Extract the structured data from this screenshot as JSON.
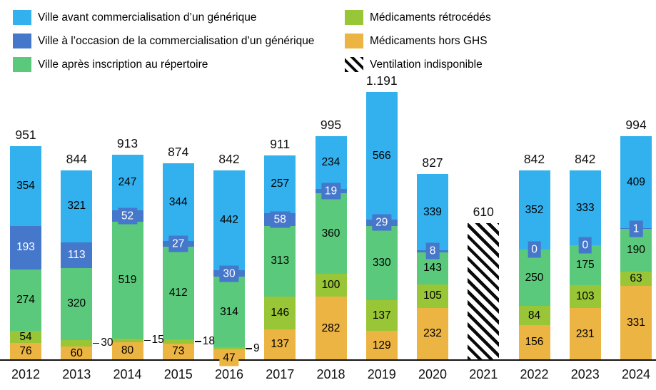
{
  "colors": {
    "ville_avant": "#33B1EE",
    "ville_occasion": "#4577CB",
    "ville_apres": "#5BC97B",
    "retrocedes": "#99C636",
    "hors_ghs": "#ECB442",
    "hatch_stroke": "#0a0a0a",
    "text": "#000000"
  },
  "legend": {
    "columns": [
      {
        "items": [
          {
            "label": "Ville avant commercialisation d’un générique",
            "swatch": "#33B1EE",
            "type": "solid"
          },
          {
            "label": "Ville à l’occasion de la commercialisation d’un générique",
            "swatch": "#4577CB",
            "type": "solid"
          },
          {
            "label": "Ville après inscription au répertoire",
            "swatch": "#5BC97B",
            "type": "solid"
          }
        ]
      },
      {
        "items": [
          {
            "label": "Médicaments rétrocédés",
            "swatch": "#99C636",
            "type": "solid"
          },
          {
            "label": "Médicaments hors GHS",
            "swatch": "#ECB442",
            "type": "solid"
          },
          {
            "label": "Ventilation indisponible",
            "swatch": "#0a0a0a",
            "type": "hatch"
          }
        ]
      }
    ]
  },
  "chart_data": {
    "type": "bar",
    "stacked": true,
    "grid": false,
    "legend_position": "top",
    "ylim": [
      0,
      1250
    ],
    "categories": [
      "2012",
      "2013",
      "2014",
      "2015",
      "2016",
      "2017",
      "2018",
      "2019",
      "2020",
      "2021",
      "2022",
      "2023",
      "2024"
    ],
    "series": [
      {
        "name": "Médicaments hors GHS",
        "color": "#ECB442",
        "label_color": "#000000",
        "values": [
          76,
          60,
          80,
          73,
          47,
          137,
          282,
          129,
          232,
          null,
          156,
          231,
          331
        ]
      },
      {
        "name": "Médicaments rétrocédés",
        "color": "#99C636",
        "label_color": "#000000",
        "values": [
          54,
          30,
          15,
          18,
          9,
          146,
          100,
          137,
          105,
          null,
          84,
          103,
          63
        ]
      },
      {
        "name": "Ville après inscription au répertoire",
        "color": "#5BC97B",
        "label_color": "#000000",
        "values": [
          274,
          320,
          519,
          412,
          314,
          313,
          360,
          330,
          143,
          null,
          250,
          175,
          190
        ]
      },
      {
        "name": "Ville à l’occasion de la commercialisation d’un générique",
        "color": "#4577CB",
        "label_color": "#ffffff",
        "values": [
          193,
          113,
          52,
          27,
          30,
          58,
          19,
          29,
          8,
          null,
          0,
          0,
          1
        ]
      },
      {
        "name": "Ville avant commercialisation d’un générique",
        "color": "#33B1EE",
        "label_color": "#000000",
        "values": [
          354,
          321,
          247,
          344,
          442,
          257,
          234,
          566,
          339,
          null,
          352,
          333,
          409
        ]
      }
    ],
    "totals": [
      951,
      844,
      913,
      874,
      842,
      911,
      995,
      1191,
      827,
      610,
      842,
      842,
      994
    ],
    "total_labels": [
      "951",
      "844",
      "913",
      "874",
      "842",
      "911",
      "995",
      "1.191",
      "827",
      "610",
      "842",
      "842",
      "994"
    ],
    "unavailable_category": "2021",
    "unavailable_total_label": "610",
    "unavailable_label": "Ventilation indisponible"
  }
}
